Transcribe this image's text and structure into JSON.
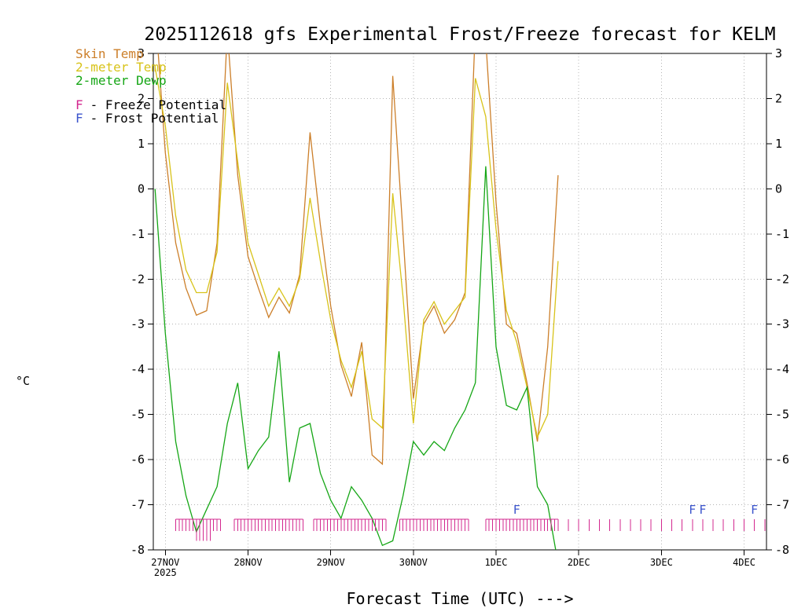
{
  "title": "2025112618 gfs Experimental Frost/Freeze forecast for KELM",
  "x_axis_title": "Forecast Time (UTC) --->",
  "y_axis_unit": "°C",
  "legend": {
    "series": [
      {
        "label": "Skin Temp",
        "color": "#cc7f2a"
      },
      {
        "label": "2-meter Temp",
        "color": "#d8c31a"
      },
      {
        "label": "2-meter Dewp",
        "color": "#15a615"
      }
    ],
    "freeze": {
      "symbol": "F",
      "label": "- Freeze Potential",
      "color": "#d3288f"
    },
    "frost": {
      "symbol": "F",
      "label": "- Frost Potential",
      "color": "#3c55cc"
    }
  },
  "chart_data": {
    "type": "line",
    "title": "2025112618 gfs Experimental Frost/Freeze forecast for KELM",
    "xlabel": "Forecast Time (UTC) --->",
    "ylabel": "°C",
    "grid": true,
    "legend_position": "top-left",
    "x_unit": "forecast hours since 2025-11-26 18UTC",
    "xlim": [
      2.5,
      180.5
    ],
    "ylim": [
      -8,
      3
    ],
    "y_ticks": [
      3,
      2,
      1,
      0,
      -1,
      -2,
      -3,
      -4,
      -5,
      -6,
      -7,
      -8
    ],
    "x_ticks": [
      {
        "hour": 6,
        "label": "27NOV",
        "sublabel": "2025"
      },
      {
        "hour": 30,
        "label": "28NOV"
      },
      {
        "hour": 54,
        "label": "29NOV"
      },
      {
        "hour": 78,
        "label": "30NOV"
      },
      {
        "hour": 102,
        "label": "1DEC"
      },
      {
        "hour": 126,
        "label": "2DEC"
      },
      {
        "hour": 150,
        "label": "3DEC"
      },
      {
        "hour": 174,
        "label": "4DEC"
      }
    ],
    "x": [
      3,
      6,
      9,
      12,
      15,
      18,
      21,
      24,
      27,
      30,
      33,
      36,
      39,
      42,
      45,
      48,
      51,
      54,
      57,
      60,
      63,
      66,
      69,
      72,
      75,
      78,
      81,
      84,
      87,
      90,
      93,
      96,
      99,
      102,
      105,
      108,
      111,
      114,
      117,
      120
    ],
    "series": [
      {
        "name": "Skin Temp",
        "data_name": "skin-temp-line",
        "color": "#cc7f2a",
        "values": [
          4.0,
          0.8,
          -1.2,
          -2.2,
          -2.8,
          -2.7,
          -1.2,
          3.5,
          0.3,
          -1.5,
          -2.2,
          -2.85,
          -2.4,
          -2.75,
          -1.9,
          1.25,
          -0.8,
          -2.6,
          -3.9,
          -4.6,
          -3.4,
          -5.9,
          -6.1,
          2.5,
          -1.0,
          -4.65,
          -3.0,
          -2.6,
          -3.2,
          -2.9,
          -2.3,
          3.6,
          3.3,
          -0.3,
          -3.0,
          -3.2,
          -4.3,
          -5.6,
          -3.5,
          0.3
        ]
      },
      {
        "name": "2-meter Temp",
        "data_name": "2-meter-temp-line",
        "color": "#d8c31a",
        "values": [
          2.7,
          1.4,
          -0.6,
          -1.8,
          -2.3,
          -2.3,
          -1.4,
          2.35,
          0.6,
          -1.2,
          -1.9,
          -2.6,
          -2.2,
          -2.6,
          -2.0,
          -0.2,
          -1.6,
          -2.9,
          -3.8,
          -4.4,
          -3.6,
          -5.1,
          -5.3,
          -0.1,
          -2.4,
          -5.2,
          -2.9,
          -2.5,
          -3.0,
          -2.7,
          -2.4,
          2.45,
          1.6,
          -0.9,
          -2.7,
          -3.4,
          -4.4,
          -5.5,
          -5.0,
          -1.6
        ]
      },
      {
        "name": "2-meter Dewp",
        "data_name": "2-meter-dewp-line",
        "color": "#15a615",
        "values": [
          0.0,
          -3.2,
          -5.6,
          -6.8,
          -7.6,
          -7.1,
          -6.6,
          -5.2,
          -4.3,
          -6.2,
          -5.8,
          -5.5,
          -3.6,
          -6.5,
          -5.3,
          -5.2,
          -6.3,
          -6.9,
          -7.3,
          -6.6,
          -6.9,
          -7.3,
          -7.9,
          -7.8,
          -6.8,
          -5.6,
          -5.9,
          -5.6,
          -5.8,
          -5.3,
          -4.9,
          -4.3,
          0.5,
          -3.5,
          -4.8,
          -4.9,
          -4.4,
          -6.6,
          -7.0,
          -8.3
        ]
      }
    ],
    "freeze_potential": {
      "color": "#d3288f",
      "level": -7.32,
      "tick_depth": -7.58,
      "hourly_periods": [
        [
          9,
          22
        ],
        [
          26,
          46
        ],
        [
          49,
          70
        ],
        [
          74,
          94
        ],
        [
          99,
          120
        ]
      ],
      "deep_tick_hours": [
        15,
        16,
        17,
        18,
        19
      ],
      "deep_tick_depth": -7.8,
      "three_hourly_ticks": {
        "start": 123,
        "end": 180,
        "step": 3
      }
    },
    "frost_potential": {
      "symbol": "F",
      "color": "#3c55cc",
      "level": -7.2,
      "hours": [
        108,
        159,
        162,
        177
      ]
    }
  }
}
